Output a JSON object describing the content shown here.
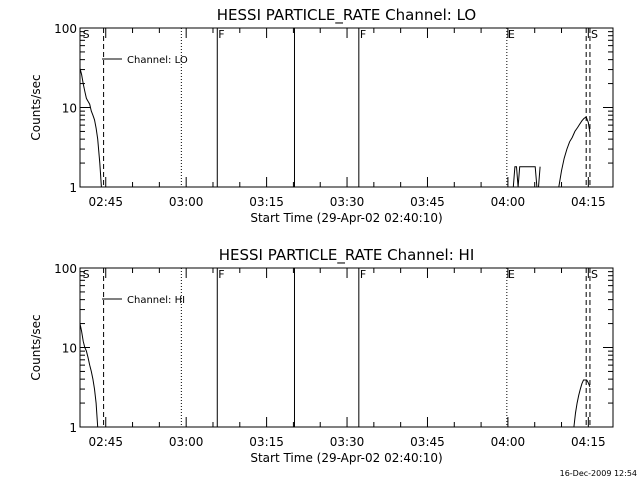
{
  "footer": {
    "timestamp": "16-Dec-2009 12:54"
  },
  "chart_data": [
    {
      "type": "line",
      "title": "HESSI PARTICLE_RATE Channel: LO",
      "xlabel": "Start Time (29-Apr-02 02:40:10)",
      "ylabel": "Counts/sec",
      "yscale": "log",
      "ylim": [
        1,
        100
      ],
      "xlim_minutes": [
        160.2,
        259.6
      ],
      "y_ticks": [
        {
          "value": 1,
          "label": "1"
        },
        {
          "value": 10,
          "label": "10"
        },
        {
          "value": 100,
          "label": "100"
        }
      ],
      "x_ticks": [
        {
          "value": 165,
          "label": "02:45"
        },
        {
          "value": 180,
          "label": "03:00"
        },
        {
          "value": 195,
          "label": "03:15"
        },
        {
          "value": 210,
          "label": "03:30"
        },
        {
          "value": 225,
          "label": "03:45"
        },
        {
          "value": 240,
          "label": "04:00"
        },
        {
          "value": 255,
          "label": "04:15"
        }
      ],
      "legend": {
        "label": "Channel: LO",
        "placement": "top-left"
      },
      "markers": [
        {
          "x": 160.5,
          "label": "S",
          "style": "none"
        },
        {
          "x": 164.6,
          "label": "",
          "style": "dashed"
        },
        {
          "x": 179.1,
          "label": "",
          "style": "dotted"
        },
        {
          "x": 185.8,
          "label": "F",
          "style": "solid"
        },
        {
          "x": 200.2,
          "label": "",
          "style": "solid"
        },
        {
          "x": 212.2,
          "label": "F",
          "style": "solid"
        },
        {
          "x": 239.8,
          "label": "E",
          "style": "dotted"
        },
        {
          "x": 254.6,
          "label": "",
          "style": "dashed"
        },
        {
          "x": 255.3,
          "label": "S",
          "style": "dashed"
        }
      ],
      "series": [
        {
          "segments": [
            {
              "x": [
                160.2,
                160.5,
                160.8,
                161.1,
                161.4,
                161.7,
                162.0,
                162.3,
                162.6,
                162.9,
                163.2,
                163.5,
                163.9,
                164.2
              ],
              "y": [
                31,
                26,
                20,
                16,
                13,
                12,
                11,
                9,
                8,
                7,
                5.5,
                4,
                2,
                1
              ]
            },
            {
              "x": [
                241.0,
                241.3,
                241.6,
                241.9,
                242.2,
                245.1,
                245.4,
                245.7,
                246.0
              ],
              "y": [
                1,
                1.8,
                1.8,
                1,
                1.8,
                1.8,
                1,
                1,
                1.8
              ]
            },
            {
              "x": [
                249.5,
                250.0,
                250.5,
                251.0,
                251.5,
                252.0,
                252.5,
                253.0,
                253.4,
                253.8,
                254.2,
                254.6,
                255.0,
                255.3
              ],
              "y": [
                1,
                1.6,
                2.3,
                3.0,
                3.7,
                4.2,
                5.0,
                5.6,
                6.2,
                6.8,
                7.3,
                7.6,
                6.5,
                4.8
              ]
            }
          ]
        }
      ]
    },
    {
      "type": "line",
      "title": "HESSI PARTICLE_RATE Channel: HI",
      "xlabel": "Start Time (29-Apr-02 02:40:10)",
      "ylabel": "Counts/sec",
      "yscale": "log",
      "ylim": [
        1,
        100
      ],
      "xlim_minutes": [
        160.2,
        259.6
      ],
      "y_ticks": [
        {
          "value": 1,
          "label": "1"
        },
        {
          "value": 10,
          "label": "10"
        },
        {
          "value": 100,
          "label": "100"
        }
      ],
      "x_ticks": [
        {
          "value": 165,
          "label": "02:45"
        },
        {
          "value": 180,
          "label": "03:00"
        },
        {
          "value": 195,
          "label": "03:15"
        },
        {
          "value": 210,
          "label": "03:30"
        },
        {
          "value": 225,
          "label": "03:45"
        },
        {
          "value": 240,
          "label": "04:00"
        },
        {
          "value": 255,
          "label": "04:15"
        }
      ],
      "legend": {
        "label": "Channel: HI",
        "placement": "top-left"
      },
      "markers": [
        {
          "x": 160.5,
          "label": "S",
          "style": "none"
        },
        {
          "x": 164.6,
          "label": "",
          "style": "dashed"
        },
        {
          "x": 179.1,
          "label": "",
          "style": "dotted"
        },
        {
          "x": 185.8,
          "label": "F",
          "style": "solid"
        },
        {
          "x": 200.2,
          "label": "",
          "style": "solid"
        },
        {
          "x": 212.2,
          "label": "F",
          "style": "solid"
        },
        {
          "x": 239.8,
          "label": "E",
          "style": "dotted"
        },
        {
          "x": 254.6,
          "label": "",
          "style": "dashed"
        },
        {
          "x": 255.3,
          "label": "S",
          "style": "dashed"
        }
      ],
      "series": [
        {
          "segments": [
            {
              "x": [
                160.2,
                160.5,
                160.8,
                161.1,
                161.4,
                161.7,
                162.0,
                162.3,
                162.6,
                162.9,
                163.2,
                163.5
              ],
              "y": [
                20,
                16,
                12,
                10,
                9,
                7.5,
                6,
                5,
                4,
                3,
                2,
                1
              ]
            },
            {
              "x": [
                252.3,
                252.6,
                252.9,
                253.2,
                253.5,
                253.8,
                254.1,
                254.4,
                254.7,
                255.0,
                255.3
              ],
              "y": [
                1,
                1.5,
                2.0,
                2.5,
                3.0,
                3.5,
                3.9,
                3.9,
                3.9,
                3.6,
                3.2
              ]
            }
          ]
        }
      ]
    }
  ]
}
